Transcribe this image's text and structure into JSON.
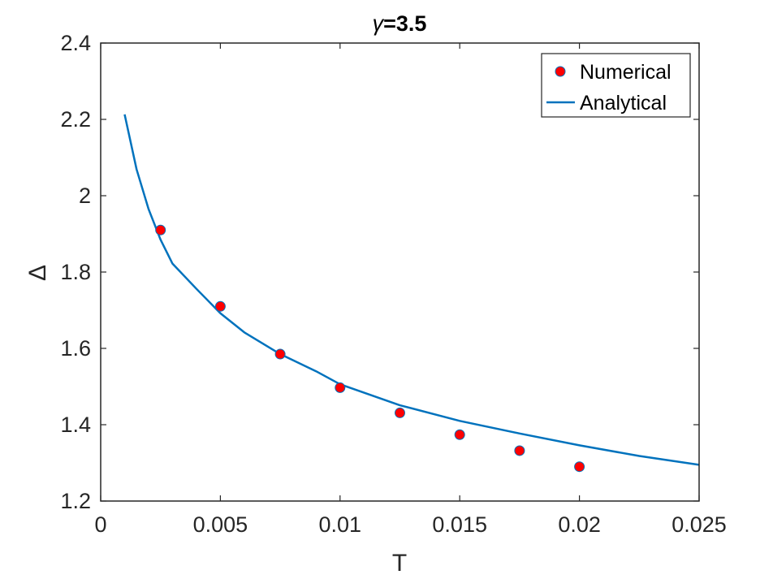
{
  "chart_data": {
    "type": "line",
    "title_prefix": "γ",
    "title_suffix": "=3.5",
    "xlabel": "T",
    "ylabel": "Δ",
    "xlim": [
      0,
      0.025
    ],
    "ylim": [
      1.2,
      2.4
    ],
    "x_ticks": [
      0,
      0.005,
      0.01,
      0.015,
      0.02,
      0.025
    ],
    "x_tick_labels": [
      "0",
      "0.005",
      "0.01",
      "0.015",
      "0.02",
      "0.025"
    ],
    "y_ticks": [
      1.2,
      1.4,
      1.6,
      1.8,
      2.0,
      2.2,
      2.4
    ],
    "y_tick_labels": [
      "1.2",
      "1.4",
      "1.6",
      "1.8",
      "2",
      "2.2",
      "2.4"
    ],
    "grid": false,
    "legend_position": "top-right",
    "series": [
      {
        "name": "Numerical",
        "kind": "scatter",
        "marker_color": "#ff0000",
        "edge_color": "#0072bd",
        "x": [
          0.0025,
          0.005,
          0.0075,
          0.01,
          0.0125,
          0.015,
          0.0175,
          0.02
        ],
        "y": [
          1.91,
          1.71,
          1.585,
          1.497,
          1.431,
          1.374,
          1.332,
          1.29
        ]
      },
      {
        "name": "Analytical",
        "kind": "line",
        "color": "#0072bd",
        "x": [
          0.001,
          0.0015,
          0.002,
          0.0025,
          0.003,
          0.004,
          0.005,
          0.006,
          0.0075,
          0.009,
          0.01,
          0.0125,
          0.015,
          0.0175,
          0.02,
          0.0225,
          0.025
        ],
        "y": [
          2.213,
          2.069,
          1.965,
          1.885,
          1.822,
          1.756,
          1.692,
          1.642,
          1.585,
          1.54,
          1.506,
          1.451,
          1.41,
          1.377,
          1.346,
          1.318,
          1.295
        ]
      }
    ]
  }
}
